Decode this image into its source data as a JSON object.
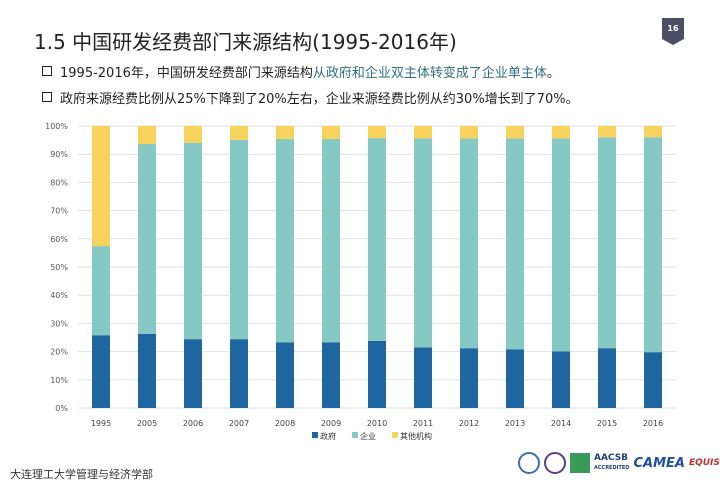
{
  "header": {
    "title": "1.5  中国研发经费部门来源结构(1995-2016年)",
    "page_number": "16"
  },
  "bullets": [
    {
      "plain": "1995-2016年，中国研发经费部门来源结构",
      "highlight": "从政府和企业双主体转变成了企业单主体",
      "end": "。"
    },
    {
      "plain": "政府来源经费比例从25%下降到了20%左右，企业来源经费比例从约30%增长到了70%。",
      "highlight": "",
      "end": ""
    }
  ],
  "chart_data": {
    "type": "bar",
    "stacked": true,
    "title": "",
    "xlabel": "",
    "ylabel": "",
    "ylim": [
      0,
      100
    ],
    "yticks": [
      "0%",
      "10%",
      "20%",
      "30%",
      "40%",
      "50%",
      "60%",
      "70%",
      "80%",
      "90%",
      "100%"
    ],
    "grid": true,
    "legend_position": "bottom",
    "categories": [
      "1995",
      "2005",
      "2006",
      "2007",
      "2008",
      "2009",
      "2010",
      "2011",
      "2012",
      "2013",
      "2014",
      "2015",
      "2016"
    ],
    "series": [
      {
        "name": "政府",
        "color": "#1f65a0",
        "values": [
          25.8,
          26.3,
          24.4,
          24.4,
          23.3,
          23.3,
          23.8,
          21.5,
          21.2,
          20.8,
          20.1,
          21.2,
          19.8
        ]
      },
      {
        "name": "企业",
        "color": "#86c9c4",
        "values": [
          31.6,
          67.3,
          69.6,
          70.7,
          72.1,
          72.1,
          71.9,
          74.1,
          74.4,
          74.8,
          75.5,
          74.8,
          76.2
        ]
      },
      {
        "name": "其他机构",
        "color": "#f7d25c",
        "values": [
          42.6,
          6.4,
          6.0,
          4.9,
          4.6,
          4.6,
          4.3,
          4.4,
          4.4,
          4.4,
          4.4,
          4.0,
          4.0
        ]
      }
    ]
  },
  "footer": {
    "institution": "大连理工大学管理与经济学部",
    "logo_texts": [
      "AACSB",
      "ACCREDITED",
      "CAMEA",
      "EQUIS"
    ]
  }
}
